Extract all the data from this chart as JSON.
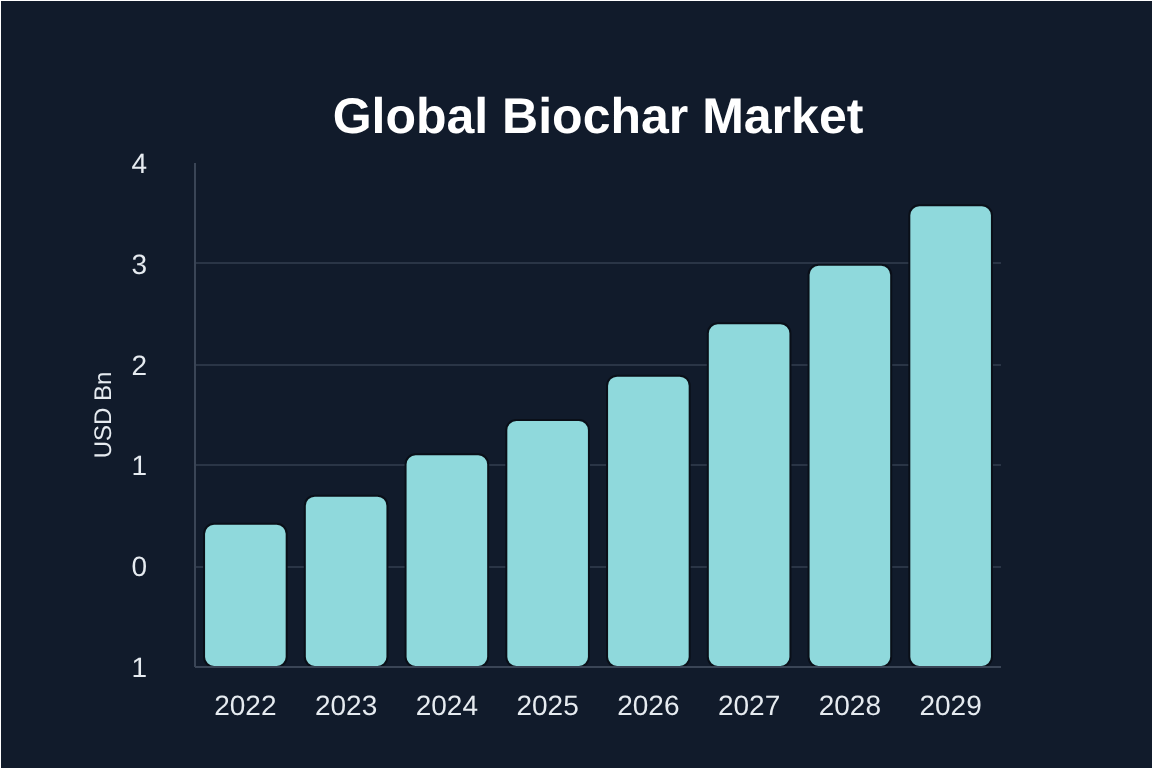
{
  "chart_data": {
    "type": "bar",
    "title": "Global Biochar Market",
    "ylabel": "USD Bn",
    "categories": [
      "2022",
      "2023",
      "2024",
      "2025",
      "2026",
      "2027",
      "2028",
      "2029"
    ],
    "values": [
      1.42,
      1.7,
      2.11,
      2.45,
      2.89,
      3.41,
      3.99,
      4.58
    ],
    "base": [
      -1,
      -1,
      -1,
      -1,
      -1,
      -1,
      -1,
      -1
    ],
    "color": "#8fd9dc",
    "ylim": [
      -1,
      4
    ],
    "yticks": [
      {
        "value": -1,
        "label": "1"
      },
      0,
      1,
      2,
      3,
      4
    ],
    "grid": "y"
  }
}
